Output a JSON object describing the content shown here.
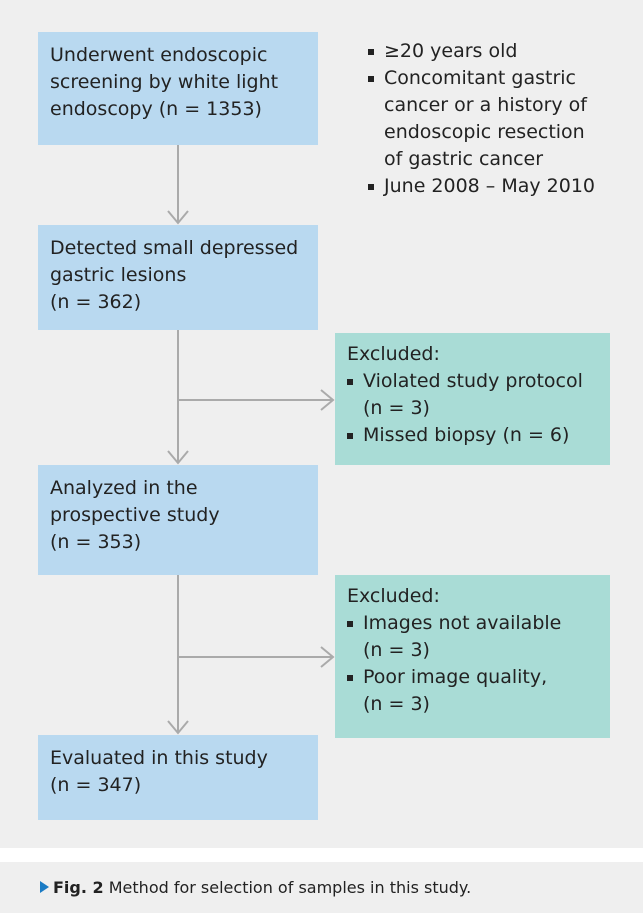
{
  "nodes": [
    {
      "lines": [
        "Underwent endoscopic",
        "screening by white light",
        "endoscopy (n = 1353)"
      ]
    },
    {
      "lines": [
        "Detected small depressed",
        "gastric lesions",
        "(n = 362)"
      ]
    },
    {
      "lines": [
        "Analyzed in the",
        "prospective study",
        "(n = 353)"
      ]
    },
    {
      "lines": [
        "Evaluated in this study",
        "(n = 347)"
      ]
    }
  ],
  "criteria": [
    [
      "≥20 years old"
    ],
    [
      "Concomitant gastric",
      "cancer or a history of",
      "endoscopic resection",
      "of gastric cancer"
    ],
    [
      "June 2008 – May 2010"
    ]
  ],
  "exclusions": [
    {
      "title": "Excluded:",
      "items": [
        [
          "Violated study protocol",
          "(n = 3)"
        ],
        [
          "Missed biopsy (n = 6)"
        ]
      ]
    },
    {
      "title": "Excluded:",
      "items": [
        [
          "Images not available",
          "(n = 3)"
        ],
        [
          "Poor image quality,",
          "(n = 3)"
        ]
      ]
    }
  ],
  "caption": {
    "label": "Fig. 2",
    "text": "Method for selection of samples in this study."
  }
}
